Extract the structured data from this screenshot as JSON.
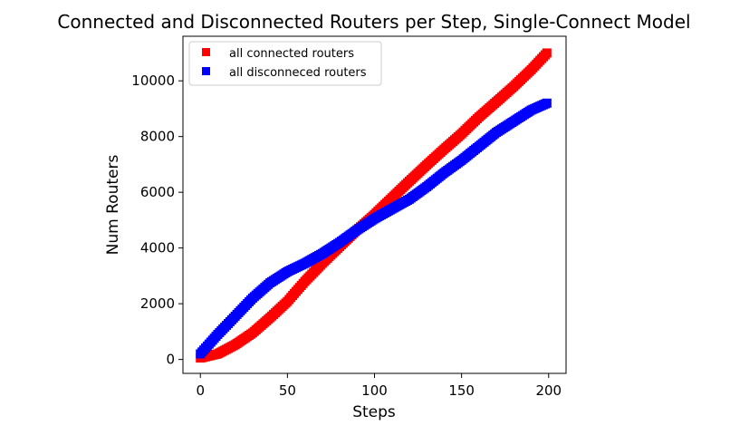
{
  "chart_data": {
    "type": "scatter",
    "title": "Connected and Disconnected Routers per Step, Single-Connect Model",
    "xlabel": "Steps",
    "ylabel": "Num Routers",
    "xlim": [
      -10,
      210
    ],
    "ylim": [
      -500,
      11600
    ],
    "xticks": [
      0,
      50,
      100,
      150,
      200
    ],
    "yticks": [
      0,
      2000,
      4000,
      6000,
      8000,
      10000
    ],
    "xtick_labels": [
      "0",
      "50",
      "100",
      "150",
      "200"
    ],
    "ytick_labels": [
      "0",
      "2000",
      "4000",
      "6000",
      "8000",
      "10000"
    ],
    "grid": false,
    "legend_position": "top-left",
    "marker": "square",
    "x": {
      "start": 0,
      "end": 199,
      "step": 1
    },
    "series": [
      {
        "name": "all connected routers",
        "color": "#ff0000",
        "anchors": [
          [
            0,
            50
          ],
          [
            10,
            200
          ],
          [
            20,
            530
          ],
          [
            30,
            950
          ],
          [
            40,
            1500
          ],
          [
            50,
            2080
          ],
          [
            60,
            2800
          ],
          [
            70,
            3450
          ],
          [
            80,
            4050
          ],
          [
            90,
            4650
          ],
          [
            100,
            5200
          ],
          [
            110,
            5800
          ],
          [
            120,
            6400
          ],
          [
            130,
            6980
          ],
          [
            140,
            7550
          ],
          [
            150,
            8100
          ],
          [
            160,
            8700
          ],
          [
            170,
            9250
          ],
          [
            180,
            9800
          ],
          [
            190,
            10400
          ],
          [
            199,
            11000
          ]
        ]
      },
      {
        "name": "all disconneced routers",
        "color": "#0000ff",
        "anchors": [
          [
            0,
            200
          ],
          [
            10,
            900
          ],
          [
            20,
            1550
          ],
          [
            30,
            2200
          ],
          [
            40,
            2750
          ],
          [
            50,
            3150
          ],
          [
            60,
            3450
          ],
          [
            70,
            3800
          ],
          [
            80,
            4200
          ],
          [
            90,
            4650
          ],
          [
            100,
            5050
          ],
          [
            110,
            5400
          ],
          [
            120,
            5750
          ],
          [
            130,
            6200
          ],
          [
            140,
            6700
          ],
          [
            150,
            7150
          ],
          [
            160,
            7650
          ],
          [
            170,
            8150
          ],
          [
            180,
            8550
          ],
          [
            190,
            8950
          ],
          [
            199,
            9200
          ]
        ]
      }
    ]
  }
}
